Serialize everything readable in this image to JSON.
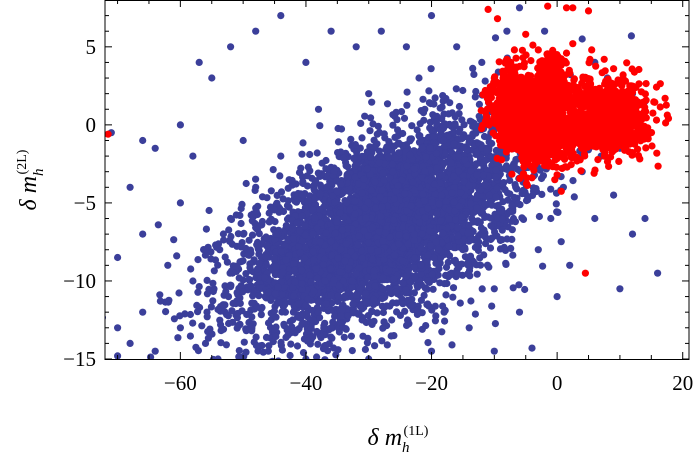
{
  "chart_data": {
    "type": "scatter",
    "title": "",
    "xlabel": "δ m_h^(1L)",
    "ylabel": "δ m_h^(2L)",
    "xlim": [
      -72,
      21
    ],
    "ylim": [
      -15,
      8
    ],
    "x_ticks": [
      -60,
      -40,
      -20,
      0,
      20
    ],
    "y_ticks": [
      -15,
      -10,
      -5,
      0,
      5
    ],
    "x_tick_labels": [
      "−60",
      "−40",
      "−20",
      "0",
      "20"
    ],
    "y_tick_labels": [
      "−15",
      "−10",
      "−5",
      "0",
      "5"
    ],
    "grid": false,
    "legend": "none",
    "series": [
      {
        "color": "#3b3f9a",
        "cloud": {
          "center": [
            -28,
            -6.5
          ],
          "spread": [
            11,
            3.2
          ],
          "correlation": 0.55,
          "count": 5200
        },
        "points": [
          [
            -66,
            -1
          ],
          [
            -64,
            -1.5
          ],
          [
            -60,
            0
          ],
          [
            -58,
            -2
          ],
          [
            -57,
            4
          ],
          [
            -55,
            3
          ],
          [
            -52,
            5
          ],
          [
            -48,
            6
          ],
          [
            -44,
            7
          ],
          [
            -40,
            4
          ],
          [
            -36,
            6
          ],
          [
            -32,
            5
          ],
          [
            -28,
            6
          ],
          [
            -24,
            5
          ],
          [
            -20,
            7
          ],
          [
            -16,
            5
          ],
          [
            -50,
            -1
          ],
          [
            -62,
            -9
          ],
          [
            -70,
            -8.5
          ],
          [
            -70,
            -13
          ],
          [
            -70,
            -14.8
          ],
          [
            -68,
            -14
          ],
          [
            -66,
            -12
          ],
          [
            -64,
            -14.5
          ],
          [
            -60,
            -13
          ],
          [
            -58,
            -10
          ],
          [
            -56,
            -14
          ],
          [
            -54,
            -15
          ],
          [
            -46,
            -14.5
          ],
          [
            -40,
            -15
          ],
          [
            -30,
            -15
          ],
          [
            -20,
            -14.5
          ],
          [
            -10,
            -14.5
          ],
          [
            -4,
            -14.3
          ],
          [
            -10,
            -10.5
          ],
          [
            -14,
            -13
          ],
          [
            2,
            -9
          ],
          [
            6,
            -6
          ],
          [
            9,
            -4.5
          ],
          [
            10,
            -10.5
          ],
          [
            12,
            -7
          ],
          [
            14,
            -6
          ],
          [
            16,
            -9.5
          ],
          [
            12,
            2
          ],
          [
            8,
            3
          ],
          [
            6,
            4
          ],
          [
            4,
            5.5
          ],
          [
            -2,
            6
          ],
          [
            -6,
            7.5
          ],
          [
            -8,
            6
          ],
          [
            -12,
            4
          ],
          [
            -22,
            3
          ],
          [
            -30,
            2
          ],
          [
            -38,
            1
          ],
          [
            -44,
            -2
          ],
          [
            -48,
            -4
          ],
          [
            -52,
            -6
          ],
          [
            -56,
            -8
          ],
          [
            -60,
            -5
          ],
          [
            -66,
            -7
          ],
          [
            -68,
            -4
          ],
          [
            -71,
            -0.5
          ],
          [
            -42,
            -12
          ],
          [
            -36,
            -13
          ],
          [
            -26,
            -13.5
          ],
          [
            -18,
            -12
          ],
          [
            -6,
            -12
          ],
          [
            0,
            -11
          ],
          [
            -3,
            -8
          ],
          [
            -1,
            -6
          ],
          [
            1,
            -4
          ],
          [
            4,
            -3
          ],
          [
            7,
            -2
          ],
          [
            10,
            -1.5
          ],
          [
            13,
            0
          ],
          [
            14,
            1.5
          ]
        ]
      },
      {
        "color": "#ff0000",
        "clusters": [
          {
            "center": [
              -2.5,
              0.2
            ],
            "spread": [
              3.2,
              1.3
            ],
            "count": 1100
          },
          {
            "center": [
              8.5,
              0.5
            ],
            "spread": [
              2.8,
              1.1
            ],
            "count": 850
          },
          {
            "center": [
              -7,
              1.5
            ],
            "spread": [
              1.8,
              1.2
            ],
            "count": 350
          },
          {
            "center": [
              -1,
              2.8
            ],
            "spread": [
              1.2,
              0.9
            ],
            "count": 220
          }
        ],
        "points": [
          [
            -11,
            7.4
          ],
          [
            -9.5,
            6.8
          ],
          [
            -5,
            5.8
          ],
          [
            -6.8,
            4.8
          ],
          [
            -8,
            4.2
          ],
          [
            -10,
            3
          ],
          [
            -10.5,
            0.2
          ],
          [
            -9,
            -1.3
          ],
          [
            -3,
            4.8
          ],
          [
            -1.5,
            7.6
          ],
          [
            1.5,
            7.5
          ],
          [
            2.5,
            7.5
          ],
          [
            5,
            7.3
          ],
          [
            2.5,
            5.2
          ],
          [
            1.5,
            4.6
          ],
          [
            5.5,
            4.8
          ],
          [
            7.5,
            4.2
          ],
          [
            9,
            3.6
          ],
          [
            10.5,
            3.2
          ],
          [
            12,
            2.1
          ],
          [
            13,
            0
          ],
          [
            2,
            -1.7
          ],
          [
            -2,
            -2.6
          ],
          [
            -4,
            -2.7
          ],
          [
            0,
            -3.2
          ],
          [
            4.5,
            -9.5
          ],
          [
            -71.5,
            -0.6
          ]
        ]
      }
    ]
  }
}
